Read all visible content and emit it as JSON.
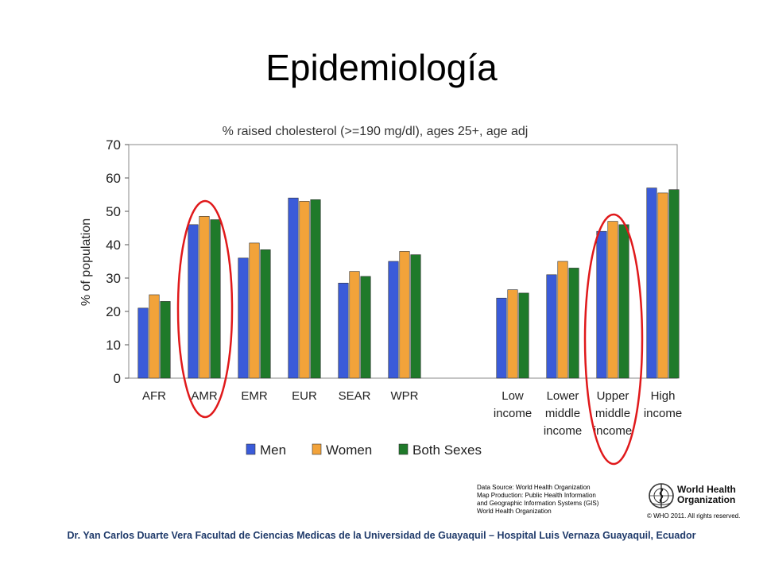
{
  "slide": {
    "title": "Epidemiología",
    "footer": "Dr. Yan Carlos Duarte Vera   Facultad de Ciencias Medicas de la Universidad de Guayaquil – Hospital Luis Vernaza Guayaquil, Ecuador"
  },
  "source_box": {
    "lines": [
      "Data Source: World Health Organization",
      "Map Production: Public Health Information",
      "and Geographic Information Systems (GIS)",
      "World Health Organization"
    ]
  },
  "who": {
    "name_line1": "World Health",
    "name_line2": "Organization",
    "copyright": "© WHO 2011. All rights reserved.",
    "icon": "who-emblem-icon"
  },
  "chart_data": {
    "type": "bar",
    "title": "% raised cholesterol (>=190 mg/dl), ages 25+, age adj",
    "ylabel": "% of population",
    "xlabel": "",
    "ylim": [
      0,
      70
    ],
    "yticks": [
      0,
      10,
      20,
      30,
      40,
      50,
      60,
      70
    ],
    "grid": false,
    "legend_position": "bottom",
    "categories": [
      [
        "AFR"
      ],
      [
        "AMR"
      ],
      [
        "EMR"
      ],
      [
        "EUR"
      ],
      [
        "SEAR"
      ],
      [
        "WPR"
      ],
      [
        "Low",
        "income"
      ],
      [
        "Lower",
        "middle",
        "income"
      ],
      [
        "Upper",
        "middle",
        "income"
      ],
      [
        "High",
        "income"
      ]
    ],
    "group_gap_after_index": 5,
    "series": [
      {
        "name": "Men",
        "color": "#3a5bd9",
        "values": [
          21,
          46,
          36,
          54,
          28.5,
          35,
          24,
          31,
          44,
          57
        ]
      },
      {
        "name": "Women",
        "color": "#f2a33a",
        "values": [
          25,
          48.5,
          40.5,
          53,
          32,
          38,
          26.5,
          35,
          47,
          55.5
        ]
      },
      {
        "name": "Both Sexes",
        "color": "#1f7a2a",
        "values": [
          23,
          47.5,
          38.5,
          53.5,
          30.5,
          37,
          25.5,
          33,
          46,
          56.5
        ]
      }
    ],
    "highlight_color": "#e0191b",
    "highlighted_categories": [
      1,
      8
    ]
  }
}
